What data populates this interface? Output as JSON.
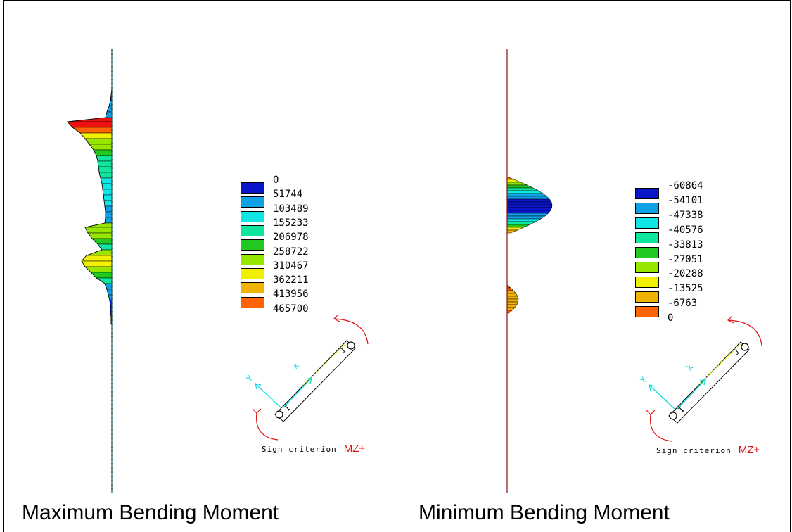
{
  "panels": [
    {
      "caption": "Maximum Bending Moment",
      "legend": [
        "0",
        "51744",
        "103489",
        "155233",
        "206978",
        "258722",
        "310467",
        "362211",
        "413956",
        "465700"
      ],
      "sign_label": "Sign criterion",
      "sign_value": "MZ+"
    },
    {
      "caption": "Minimum Bending Moment",
      "legend": [
        "-60864",
        "-54101",
        "-47338",
        "-40576",
        "-33813",
        "-27051",
        "-20288",
        "-13525",
        "-6763",
        "0"
      ],
      "sign_label": "Sign criterion",
      "sign_value": "MZ+"
    }
  ],
  "colors": {
    "scale": [
      "#0a14c8",
      "#10a0e6",
      "#10e6e6",
      "#10e6a0",
      "#20c820",
      "#96e600",
      "#f0f000",
      "#f0b400",
      "#ff6400",
      "#f01010"
    ],
    "accent": "#e01010",
    "axis": "#1e6464"
  },
  "member_labels": {
    "x": "X",
    "y": "Y",
    "i": "I",
    "j": "J"
  }
}
